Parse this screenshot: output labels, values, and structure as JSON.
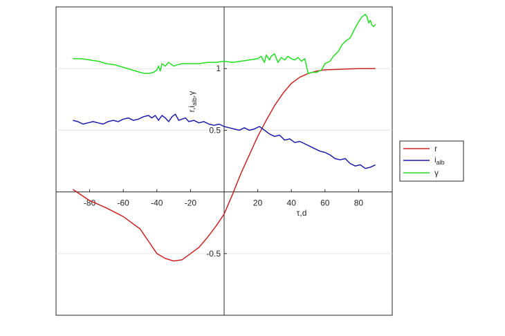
{
  "chart_data": {
    "type": "line",
    "title": "",
    "xlabel": "τ,d",
    "ylabel_parts": [
      "r,i",
      "alb",
      ",γ"
    ],
    "xlim": [
      -100,
      100
    ],
    "ylim": [
      -1,
      1.5
    ],
    "grid": "horizontal",
    "legend_position": "right",
    "x_ticks": [
      -80,
      -60,
      -40,
      -20,
      20,
      40,
      60,
      80
    ],
    "x_tick_labels": [
      "-80",
      "-60",
      "-40",
      "-20",
      "20",
      "40",
      "60",
      "80"
    ],
    "y_ticks": [
      -0.5,
      0.5,
      1
    ],
    "y_tick_labels": [
      "-0.5",
      "0.5",
      "1"
    ],
    "series": [
      {
        "name": "r",
        "color": "#cc2222",
        "x": [
          -90,
          -80,
          -70,
          -60,
          -50,
          -45,
          -40,
          -35,
          -30,
          -25,
          -20,
          -15,
          -10,
          -5,
          0,
          5,
          10,
          15,
          20,
          25,
          30,
          35,
          40,
          45,
          50,
          55,
          60,
          70,
          80,
          90
        ],
        "y": [
          0.02,
          -0.07,
          -0.13,
          -0.2,
          -0.3,
          -0.4,
          -0.5,
          -0.54,
          -0.56,
          -0.55,
          -0.5,
          -0.45,
          -0.37,
          -0.28,
          -0.18,
          -0.02,
          0.15,
          0.3,
          0.45,
          0.58,
          0.7,
          0.8,
          0.88,
          0.93,
          0.96,
          0.98,
          0.99,
          0.995,
          1.0,
          1.0
        ],
        "legend_label": "r"
      },
      {
        "name": "i_alb",
        "color": "#1a1aaa",
        "x": [
          -90,
          -87,
          -84,
          -81,
          -78,
          -75,
          -72,
          -69,
          -66,
          -63,
          -60,
          -57,
          -54,
          -51,
          -48,
          -45,
          -43,
          -41,
          -39,
          -37,
          -35,
          -33,
          -31,
          -29,
          -27,
          -25,
          -23,
          -21,
          -18,
          -15,
          -12,
          -9,
          -6,
          -3,
          0,
          3,
          6,
          9,
          12,
          15,
          18,
          21,
          24,
          27,
          30,
          33,
          36,
          39,
          42,
          45,
          48,
          51,
          54,
          57,
          60,
          63,
          66,
          69,
          72,
          75,
          78,
          81,
          84,
          87,
          90
        ],
        "y": [
          0.58,
          0.57,
          0.55,
          0.56,
          0.57,
          0.56,
          0.55,
          0.57,
          0.58,
          0.57,
          0.59,
          0.6,
          0.58,
          0.59,
          0.61,
          0.62,
          0.6,
          0.62,
          0.58,
          0.62,
          0.6,
          0.57,
          0.61,
          0.63,
          0.58,
          0.59,
          0.6,
          0.57,
          0.58,
          0.56,
          0.57,
          0.55,
          0.54,
          0.55,
          0.53,
          0.52,
          0.51,
          0.5,
          0.52,
          0.5,
          0.51,
          0.53,
          0.5,
          0.47,
          0.45,
          0.46,
          0.42,
          0.43,
          0.4,
          0.41,
          0.39,
          0.37,
          0.35,
          0.33,
          0.32,
          0.3,
          0.27,
          0.26,
          0.27,
          0.23,
          0.21,
          0.22,
          0.19,
          0.2,
          0.22
        ],
        "legend_label": "i",
        "legend_sub": "alb"
      },
      {
        "name": "γ",
        "color": "#22dd22",
        "x": [
          -90,
          -85,
          -80,
          -75,
          -70,
          -65,
          -60,
          -55,
          -50,
          -47,
          -45,
          -42,
          -40,
          -39,
          -38,
          -37,
          -36,
          -35,
          -33,
          -31,
          -30,
          -28,
          -25,
          -20,
          -15,
          -10,
          -5,
          0,
          5,
          10,
          15,
          20,
          22,
          24,
          25,
          27,
          28,
          30,
          32,
          34,
          36,
          38,
          40,
          42,
          44,
          46,
          48,
          49,
          50,
          52,
          55,
          58,
          60,
          63,
          65,
          68,
          70,
          72,
          75,
          78,
          80,
          82,
          84,
          85,
          86,
          87,
          88,
          89,
          90
        ],
        "y": [
          1.08,
          1.08,
          1.07,
          1.06,
          1.04,
          1.03,
          1.01,
          0.99,
          0.97,
          0.96,
          0.96,
          0.97,
          0.99,
          1.02,
          0.98,
          1.04,
          1.03,
          1.02,
          1.05,
          1.03,
          1.02,
          1.03,
          1.04,
          1.04,
          1.04,
          1.05,
          1.05,
          1.06,
          1.05,
          1.06,
          1.07,
          1.08,
          1.1,
          1.05,
          1.11,
          1.07,
          1.1,
          1.12,
          1.05,
          1.09,
          1.07,
          1.1,
          1.08,
          1.07,
          1.09,
          1.06,
          1.08,
          1.02,
          0.96,
          0.97,
          0.97,
          0.99,
          1.04,
          1.06,
          1.1,
          1.14,
          1.19,
          1.22,
          1.25,
          1.33,
          1.38,
          1.42,
          1.44,
          1.42,
          1.37,
          1.39,
          1.35,
          1.34,
          1.36
        ],
        "legend_label": "γ"
      }
    ]
  }
}
